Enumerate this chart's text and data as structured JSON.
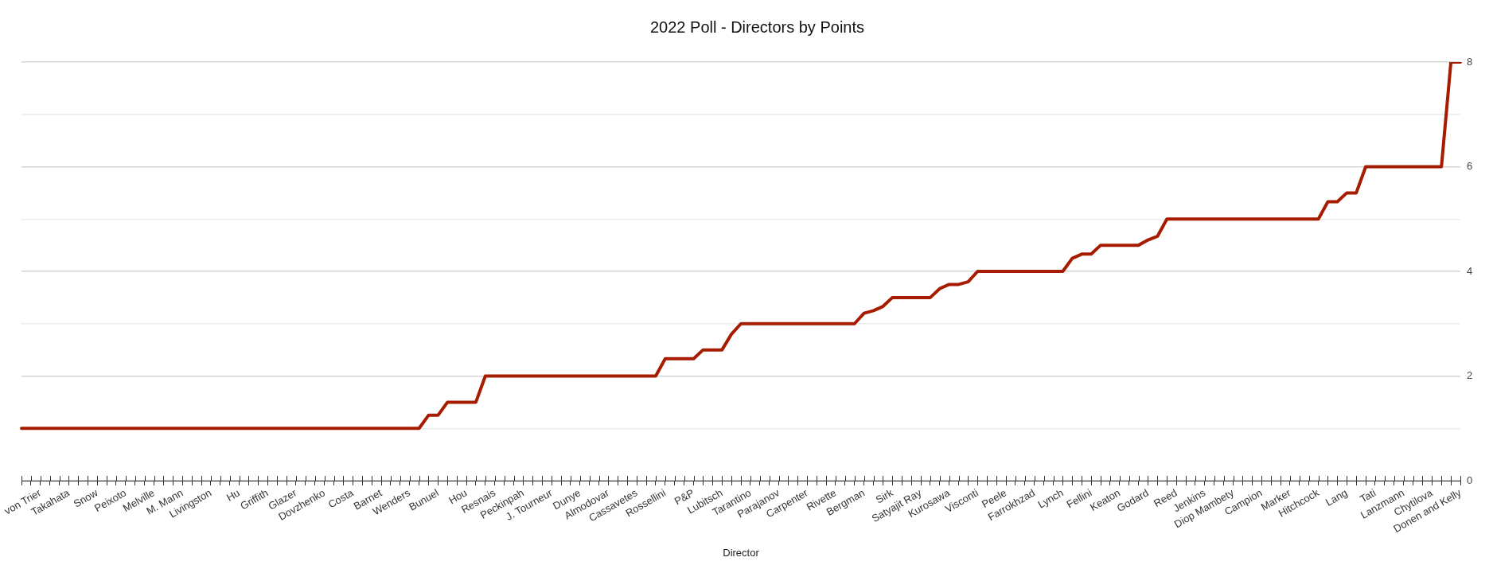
{
  "chart_data": {
    "type": "line",
    "title": "2022 Poll - Directors by Points",
    "xlabel": "Director",
    "categories": [
      null,
      null,
      "von Trier",
      null,
      null,
      "Takahata",
      null,
      null,
      "Snow",
      null,
      null,
      "Peixoto",
      null,
      null,
      "Melville",
      null,
      null,
      "M. Mann",
      null,
      null,
      "Livingston",
      null,
      null,
      "Hu",
      null,
      null,
      "Griffith",
      null,
      null,
      "Glazer",
      null,
      null,
      "Dovzhenko",
      null,
      null,
      "Costa",
      null,
      null,
      "Barnet",
      null,
      null,
      "Wenders",
      null,
      null,
      "Bunuel",
      null,
      null,
      "Hou",
      null,
      null,
      "Resnais",
      null,
      null,
      "Peckinpah",
      null,
      null,
      "J. Tourneur",
      null,
      null,
      "Dunye",
      null,
      null,
      "Almodovar",
      null,
      null,
      "Cassavetes",
      null,
      null,
      "Rossellini",
      null,
      null,
      "P&P",
      null,
      null,
      "Lubitsch",
      null,
      null,
      "Tarantino",
      null,
      null,
      "Parajanov",
      null,
      null,
      "Carpenter",
      null,
      null,
      "Rivette",
      null,
      null,
      "Bergman",
      null,
      null,
      "Sirk",
      null,
      null,
      "Satyajit Ray",
      null,
      null,
      "Kurosawa",
      null,
      null,
      "Visconti",
      null,
      null,
      "Peele",
      null,
      null,
      "Farrokhzad",
      null,
      null,
      "Lynch",
      null,
      null,
      "Fellini",
      null,
      null,
      "Keaton",
      null,
      null,
      "Godard",
      null,
      null,
      "Reed",
      null,
      null,
      "Jenkins",
      null,
      null,
      "Diop Mambety",
      null,
      null,
      "Campion",
      null,
      null,
      "Marker",
      null,
      null,
      "Hitchcock",
      null,
      null,
      "Lang",
      null,
      null,
      "Tati",
      null,
      null,
      "Lanzmann",
      null,
      null,
      "Chytilova",
      null,
      null,
      "Donen and Kelly"
    ],
    "values": [
      1,
      1,
      1,
      1,
      1,
      1,
      1,
      1,
      1,
      1,
      1,
      1,
      1,
      1,
      1,
      1,
      1,
      1,
      1,
      1,
      1,
      1,
      1,
      1,
      1,
      1,
      1,
      1,
      1,
      1,
      1,
      1,
      1,
      1,
      1,
      1,
      1,
      1,
      1,
      1,
      1,
      1,
      1,
      1.25,
      1.25,
      1.5,
      1.5,
      1.5,
      1.5,
      2,
      2,
      2,
      2,
      2,
      2,
      2,
      2,
      2,
      2,
      2,
      2,
      2,
      2,
      2,
      2,
      2,
      2,
      2,
      2.33,
      2.33,
      2.33,
      2.33,
      2.5,
      2.5,
      2.5,
      2.8,
      3,
      3,
      3,
      3,
      3,
      3,
      3,
      3,
      3,
      3,
      3,
      3,
      3,
      3.2,
      3.25,
      3.33,
      3.5,
      3.5,
      3.5,
      3.5,
      3.5,
      3.67,
      3.75,
      3.75,
      3.8,
      4,
      4,
      4,
      4,
      4,
      4,
      4,
      4,
      4,
      4,
      4.25,
      4.33,
      4.33,
      4.5,
      4.5,
      4.5,
      4.5,
      4.5,
      4.6,
      4.67,
      5,
      5,
      5,
      5,
      5,
      5,
      5,
      5,
      5,
      5,
      5,
      5,
      5,
      5,
      5,
      5,
      5,
      5.33,
      5.33,
      5.5,
      5.5,
      6,
      6,
      6,
      6,
      6,
      6,
      6,
      6,
      6,
      8,
      8
    ],
    "color": "#a61c00",
    "ylim": [
      0,
      8
    ],
    "yticks": [
      0,
      {
        "value": 1,
        "label": null
      },
      2,
      {
        "value": 3,
        "label": null
      },
      4,
      {
        "value": 5,
        "label": null
      },
      6,
      {
        "value": 7,
        "label": null
      },
      8
    ],
    "grid": "y",
    "marker": "none",
    "line_style": "solid"
  }
}
